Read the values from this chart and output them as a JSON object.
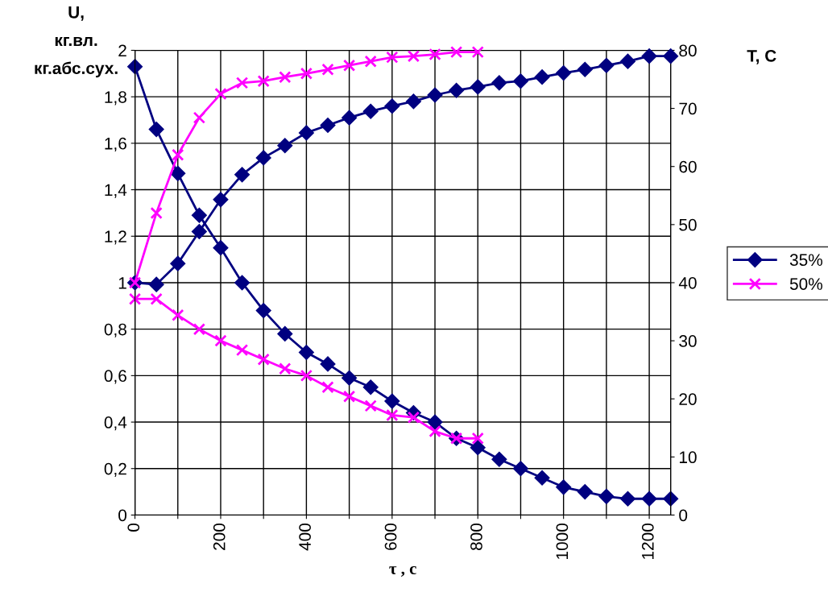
{
  "chart_data": {
    "type": "line",
    "xlabel": "τ , с",
    "ylabel": "U,\nкг.вл.\nкг.абс.сух.",
    "y2label": "T, C",
    "x": [
      0,
      50,
      100,
      150,
      200,
      250,
      300,
      350,
      400,
      450,
      500,
      550,
      600,
      650,
      700,
      750,
      800,
      850,
      900,
      950,
      1000,
      1050,
      1100,
      1150,
      1200,
      1250
    ],
    "series": [
      {
        "name": "35%",
        "color": "#000080",
        "marker": "diamond",
        "values": [
          1.93,
          1.66,
          1.47,
          1.29,
          1.15,
          1.0,
          0.88,
          0.78,
          0.7,
          0.65,
          0.59,
          0.55,
          0.49,
          0.44,
          0.4,
          0.33,
          0.29,
          0.24,
          0.2,
          0.16,
          0.12,
          0.1,
          0.08,
          0.07,
          0.07,
          0.07
        ]
      },
      {
        "name": "50%",
        "color": "#ff00ff",
        "marker": "cross",
        "values": [
          0.93,
          0.93,
          0.86,
          0.8,
          0.75,
          0.71,
          0.67,
          0.63,
          0.6,
          0.55,
          0.51,
          0.47,
          0.43,
          0.42,
          0.36,
          0.33,
          0.33,
          null,
          null,
          null,
          null,
          null,
          null,
          null,
          null,
          null
        ]
      },
      {
        "color": "#000080",
        "marker": "diamond",
        "axis": "y2",
        "values": [
          40,
          39.7,
          43.3,
          48.8,
          54.3,
          58.6,
          61.5,
          63.6,
          65.8,
          67.1,
          68.4,
          69.5,
          70.4,
          71.2,
          72.3,
          73.1,
          73.7,
          74.4,
          74.7,
          75.4,
          76.1,
          76.7,
          77.4,
          78.1,
          79.0,
          79.0
        ]
      },
      {
        "color": "#ff00ff",
        "marker": "cross",
        "axis": "y2",
        "values": [
          40,
          52.0,
          62.0,
          68.4,
          72.5,
          74.4,
          74.7,
          75.4,
          76.0,
          76.7,
          77.4,
          78.1,
          78.8,
          79.0,
          79.3,
          79.7,
          79.7,
          null,
          null,
          null,
          null,
          null,
          null,
          null,
          null,
          null
        ]
      }
    ],
    "xlim": [
      0,
      1250
    ],
    "xticks": [
      0,
      {
        "value": 100,
        "label": null
      },
      200,
      {
        "value": 300,
        "label": null
      },
      400,
      {
        "value": 500,
        "label": null
      },
      600,
      {
        "value": 700,
        "label": null
      },
      800,
      {
        "value": 900,
        "label": null
      },
      1000,
      {
        "value": 1100,
        "label": null
      },
      1200
    ],
    "ylim": [
      0,
      2
    ],
    "yticks": [
      0,
      {
        "value": 0.2,
        "label": "0,2"
      },
      {
        "value": 0.4,
        "label": "0,4"
      },
      {
        "value": 0.6,
        "label": "0,6"
      },
      {
        "value": 0.8,
        "label": "0,8"
      },
      1,
      {
        "value": 1.2,
        "label": "1,2"
      },
      {
        "value": 1.4,
        "label": "1,4"
      },
      {
        "value": 1.6,
        "label": "1,6"
      },
      {
        "value": 1.8,
        "label": "1,8"
      },
      2
    ],
    "y2lim": [
      0,
      80
    ],
    "y2ticks": [
      0,
      10,
      20,
      30,
      40,
      50,
      60,
      70,
      80
    ],
    "grid": true,
    "legend": "right",
    "line_style": "solid"
  }
}
